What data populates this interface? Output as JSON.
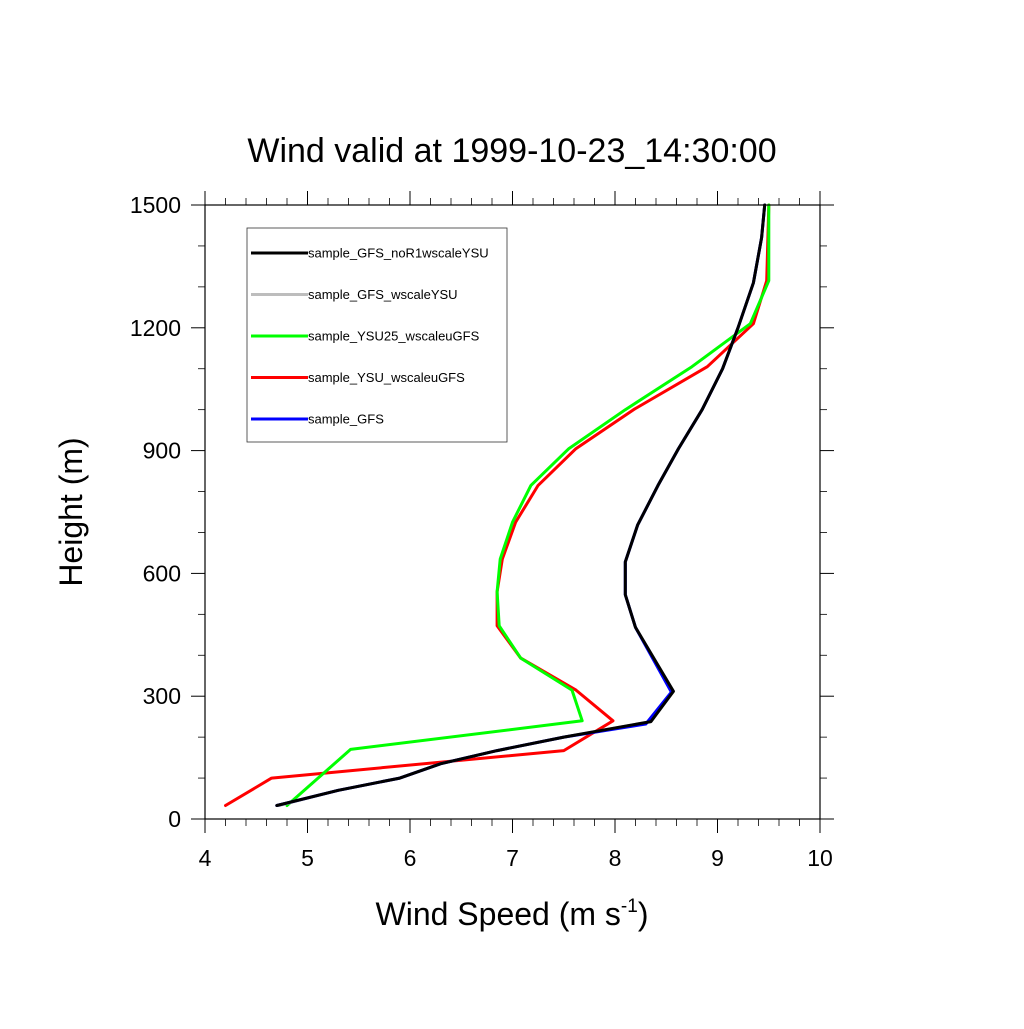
{
  "chart_data": {
    "type": "line",
    "title": "Wind valid at 1999-10-23_14:30:00",
    "xlabel": "Wind Speed (m s",
    "xlabel_exponent": "-1",
    "xlabel_suffix": ")",
    "ylabel": "Height (m)",
    "xlim": [
      4,
      10
    ],
    "ylim": [
      0,
      1500
    ],
    "xticks": [
      4,
      5,
      6,
      7,
      8,
      9,
      10
    ],
    "yticks": [
      0,
      300,
      600,
      900,
      1200,
      1500
    ],
    "grid": false,
    "legend_position": "top-left",
    "series": [
      {
        "name": "sample_GFS_noR1wscaleYSU",
        "color": "#000000",
        "points": [
          [
            4.7,
            33
          ],
          [
            5.3,
            70
          ],
          [
            5.9,
            100
          ],
          [
            6.3,
            135
          ],
          [
            6.85,
            167
          ],
          [
            7.5,
            200
          ],
          [
            8.35,
            238
          ],
          [
            8.57,
            312
          ],
          [
            8.2,
            468
          ],
          [
            8.1,
            548
          ],
          [
            8.1,
            628
          ],
          [
            8.22,
            718
          ],
          [
            8.42,
            815
          ],
          [
            8.62,
            905
          ],
          [
            8.85,
            1000
          ],
          [
            9.05,
            1100
          ],
          [
            9.2,
            1200
          ],
          [
            9.35,
            1310
          ],
          [
            9.43,
            1420
          ],
          [
            9.46,
            1500
          ]
        ]
      },
      {
        "name": "sample_GFS_wscaleYSU",
        "color": "#bdbdbd",
        "points": [
          [
            4.72,
            33
          ],
          [
            5.3,
            70
          ],
          [
            5.9,
            100
          ],
          [
            6.3,
            135
          ],
          [
            6.85,
            167
          ],
          [
            7.5,
            200
          ],
          [
            8.35,
            238
          ],
          [
            8.57,
            312
          ],
          [
            8.2,
            468
          ],
          [
            8.1,
            548
          ],
          [
            8.1,
            628
          ],
          [
            8.22,
            718
          ],
          [
            8.42,
            815
          ],
          [
            8.62,
            905
          ],
          [
            8.85,
            1000
          ],
          [
            9.05,
            1100
          ],
          [
            9.2,
            1200
          ],
          [
            9.35,
            1310
          ],
          [
            9.43,
            1420
          ],
          [
            9.46,
            1500
          ]
        ]
      },
      {
        "name": "sample_YSU25_wscaleuGFS",
        "color": "#00ff00",
        "points": [
          [
            4.8,
            33
          ],
          [
            5.42,
            170
          ],
          [
            7.68,
            240
          ],
          [
            7.58,
            315
          ],
          [
            7.08,
            393
          ],
          [
            6.87,
            472
          ],
          [
            6.85,
            555
          ],
          [
            6.88,
            635
          ],
          [
            7.0,
            725
          ],
          [
            7.18,
            815
          ],
          [
            7.55,
            905
          ],
          [
            8.1,
            1000
          ],
          [
            8.75,
            1105
          ],
          [
            9.32,
            1210
          ],
          [
            9.5,
            1315
          ],
          [
            9.5,
            1500
          ]
        ]
      },
      {
        "name": "sample_YSU_wscaleuGFS",
        "color": "#ff0000",
        "points": [
          [
            4.2,
            33
          ],
          [
            4.65,
            100
          ],
          [
            7.5,
            167
          ],
          [
            7.98,
            240
          ],
          [
            7.62,
            315
          ],
          [
            7.08,
            393
          ],
          [
            6.85,
            472
          ],
          [
            6.85,
            555
          ],
          [
            6.9,
            635
          ],
          [
            7.03,
            725
          ],
          [
            7.25,
            815
          ],
          [
            7.62,
            905
          ],
          [
            8.18,
            1000
          ],
          [
            8.9,
            1105
          ],
          [
            9.35,
            1210
          ],
          [
            9.48,
            1315
          ],
          [
            9.5,
            1500
          ]
        ]
      },
      {
        "name": "sample_GFS",
        "color": "#0000ff",
        "points": [
          [
            4.7,
            33
          ],
          [
            5.3,
            70
          ],
          [
            5.9,
            100
          ],
          [
            6.3,
            135
          ],
          [
            6.85,
            167
          ],
          [
            7.5,
            200
          ],
          [
            8.3,
            232
          ],
          [
            8.55,
            310
          ],
          [
            8.2,
            468
          ],
          [
            8.1,
            548
          ],
          [
            8.1,
            628
          ],
          [
            8.22,
            718
          ],
          [
            8.42,
            815
          ],
          [
            8.62,
            905
          ],
          [
            8.85,
            1000
          ],
          [
            9.05,
            1100
          ],
          [
            9.2,
            1200
          ],
          [
            9.35,
            1310
          ],
          [
            9.43,
            1420
          ],
          [
            9.46,
            1500
          ]
        ]
      }
    ]
  }
}
